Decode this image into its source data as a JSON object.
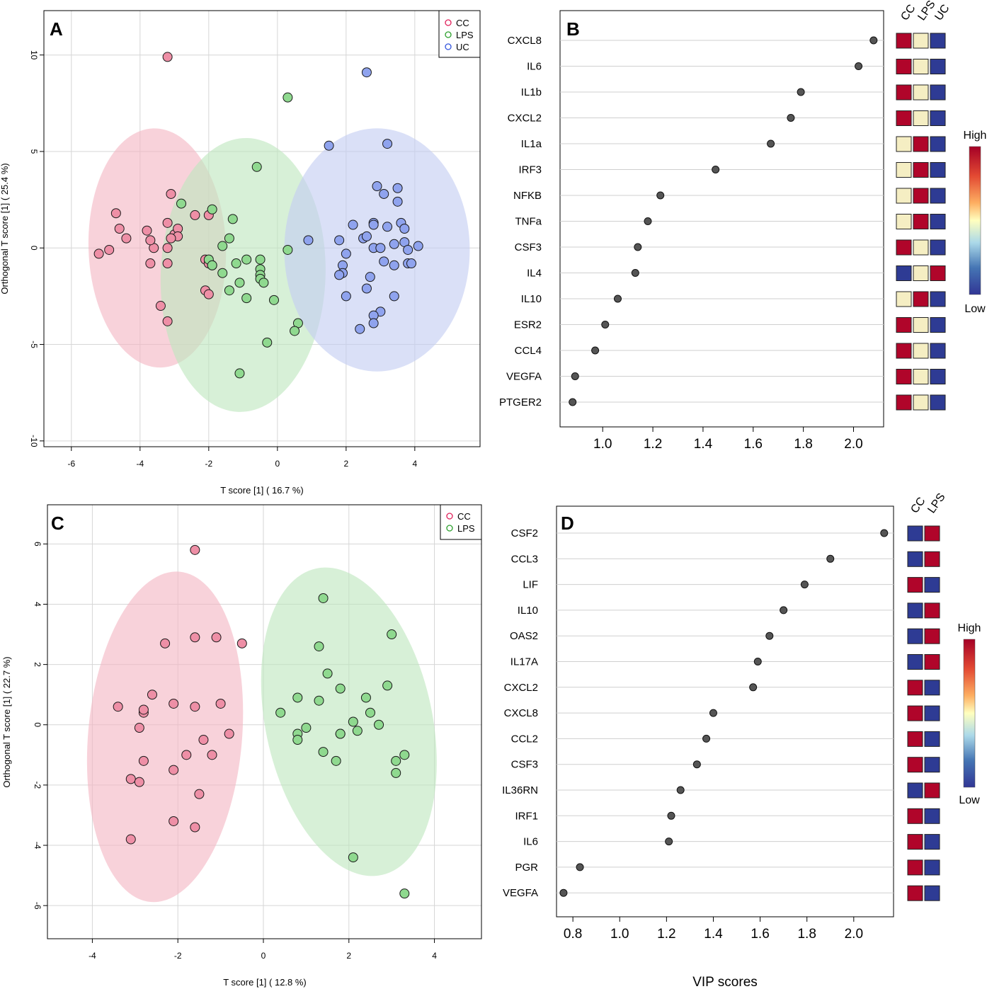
{
  "panelA": {
    "letter": "A",
    "xlabel": "T score [1] ( 16.7 %)",
    "ylabel": "Orthogonal T score [1] ( 25.4 %)",
    "xticks": [
      "-6",
      "-4",
      "-2",
      "0",
      "2",
      "4"
    ],
    "yticks": [
      "10",
      "5",
      "0",
      "-5",
      "-10"
    ],
    "legend": [
      "CC",
      "LPS",
      "UC"
    ]
  },
  "panelB": {
    "letter": "B",
    "xticks": [
      "1.0",
      "1.2",
      "1.4",
      "1.6",
      "1.8",
      "2.0"
    ],
    "group_labels": [
      "CC",
      "LPS",
      "UC"
    ],
    "colorbar_high": "High",
    "colorbar_low": "Low"
  },
  "panelC": {
    "letter": "C",
    "xlabel": "T score [1] ( 12.8 %)",
    "ylabel": "Orthogonal T score [1] ( 22.7 %)",
    "xticks": [
      "-4",
      "-2",
      "0",
      "2",
      "4"
    ],
    "yticks": [
      "6",
      "4",
      "2",
      "0",
      "-2",
      "-4",
      "-6"
    ],
    "legend": [
      "CC",
      "LPS"
    ]
  },
  "panelD": {
    "letter": "D",
    "xlabel": "VIP scores",
    "xticks": [
      "0.8",
      "1.0",
      "1.2",
      "1.4",
      "1.6",
      "1.8",
      "2.0"
    ],
    "group_labels": [
      "CC",
      "LPS"
    ],
    "colorbar_high": "High",
    "colorbar_low": "Low"
  },
  "colors": {
    "CC_fill": "#ee8fa6",
    "CC_edge": "#e0205a",
    "LPS_fill": "#8fd98f",
    "LPS_edge": "#2ca02c",
    "UC_fill": "#8fa3ee",
    "UC_edge": "#3355dd",
    "CC_ellipse": "#f4b6c4",
    "LPS_ellipse": "#bfe6bf",
    "UC_ellipse": "#c3cdf2",
    "heat_high": "#b0052a",
    "heat_mid": "#f5eec3",
    "heat_low": "#2e3b94",
    "dot": "#555555"
  },
  "chart_data": [
    {
      "panel": "A",
      "type": "scatter",
      "xlabel": "T score [1] ( 16.7 %)",
      "ylabel": "Orthogonal T score [1] ( 25.4 %)",
      "xlim": [
        -6.8,
        5.9
      ],
      "ylim": [
        -10.3,
        12.3
      ],
      "ellipses": [
        {
          "group": "CC",
          "cx": -3.5,
          "cy": 0.0,
          "rx": 2.0,
          "ry": 6.2,
          "angle": -2
        },
        {
          "group": "LPS",
          "cx": -1.0,
          "cy": -1.4,
          "rx": 2.4,
          "ry": 7.1,
          "angle": 2
        },
        {
          "group": "UC",
          "cx": 2.9,
          "cy": -0.1,
          "rx": 2.7,
          "ry": 6.3,
          "angle": 0
        }
      ],
      "series": [
        {
          "name": "CC",
          "points": [
            [
              -3.2,
              9.9
            ],
            [
              -4.7,
              1.8
            ],
            [
              -4.6,
              1.0
            ],
            [
              -4.4,
              0.5
            ],
            [
              -5.2,
              -0.3
            ],
            [
              -4.9,
              -0.1
            ],
            [
              -3.6,
              0.0
            ],
            [
              -3.8,
              0.9
            ],
            [
              -3.7,
              0.4
            ],
            [
              -3.1,
              2.8
            ],
            [
              -3.2,
              1.3
            ],
            [
              -3.0,
              0.7
            ],
            [
              -2.9,
              1.0
            ],
            [
              -2.9,
              0.6
            ],
            [
              -3.1,
              0.5
            ],
            [
              -3.2,
              0.0
            ],
            [
              -2.4,
              1.7
            ],
            [
              -2.0,
              1.7
            ],
            [
              -3.7,
              -0.8
            ],
            [
              -3.2,
              -0.8
            ],
            [
              -3.4,
              -3.0
            ],
            [
              -3.2,
              -3.8
            ],
            [
              -2.1,
              -2.2
            ],
            [
              -2.0,
              -2.4
            ],
            [
              -2.1,
              -0.6
            ],
            [
              -2.0,
              -0.8
            ],
            [
              -1.9,
              -0.9
            ]
          ]
        },
        {
          "name": "LPS",
          "points": [
            [
              0.3,
              7.8
            ],
            [
              -0.6,
              4.2
            ],
            [
              -2.8,
              2.3
            ],
            [
              -1.9,
              2.0
            ],
            [
              -1.3,
              1.5
            ],
            [
              -1.4,
              0.5
            ],
            [
              -1.6,
              0.1
            ],
            [
              -2.0,
              -0.6
            ],
            [
              -1.9,
              -0.9
            ],
            [
              -1.6,
              -1.3
            ],
            [
              -1.2,
              -0.8
            ],
            [
              -0.9,
              -0.6
            ],
            [
              -0.5,
              -0.6
            ],
            [
              -0.5,
              -1.1
            ],
            [
              -0.5,
              -1.4
            ],
            [
              -0.5,
              -1.6
            ],
            [
              -0.4,
              -1.8
            ],
            [
              -1.1,
              -1.8
            ],
            [
              -1.4,
              -2.2
            ],
            [
              -0.9,
              -2.6
            ],
            [
              -0.1,
              -2.7
            ],
            [
              0.3,
              -0.1
            ],
            [
              0.6,
              -3.9
            ],
            [
              0.5,
              -4.3
            ],
            [
              -0.3,
              -4.9
            ],
            [
              -1.1,
              -6.5
            ]
          ]
        },
        {
          "name": "UC",
          "points": [
            [
              2.6,
              9.1
            ],
            [
              1.5,
              5.3
            ],
            [
              3.2,
              5.4
            ],
            [
              2.9,
              3.2
            ],
            [
              3.1,
              2.8
            ],
            [
              3.5,
              3.1
            ],
            [
              3.5,
              2.4
            ],
            [
              2.2,
              1.2
            ],
            [
              2.8,
              1.3
            ],
            [
              2.8,
              1.2
            ],
            [
              3.2,
              1.1
            ],
            [
              3.6,
              1.3
            ],
            [
              3.7,
              1.0
            ],
            [
              0.9,
              0.4
            ],
            [
              1.8,
              0.4
            ],
            [
              2.5,
              0.5
            ],
            [
              2.6,
              0.6
            ],
            [
              2.8,
              0.0
            ],
            [
              3.0,
              0.0
            ],
            [
              3.4,
              0.2
            ],
            [
              3.7,
              0.3
            ],
            [
              3.8,
              -0.1
            ],
            [
              4.1,
              0.1
            ],
            [
              2.0,
              -0.3
            ],
            [
              3.1,
              -0.7
            ],
            [
              3.4,
              -0.9
            ],
            [
              3.8,
              -0.8
            ],
            [
              3.9,
              -0.8
            ],
            [
              1.9,
              -0.9
            ],
            [
              1.9,
              -1.3
            ],
            [
              1.8,
              -1.4
            ],
            [
              2.7,
              -1.5
            ],
            [
              2.6,
              -2.1
            ],
            [
              2.0,
              -2.5
            ],
            [
              3.4,
              -2.5
            ],
            [
              3.0,
              -3.3
            ],
            [
              2.8,
              -3.5
            ],
            [
              2.8,
              -3.9
            ],
            [
              2.4,
              -4.2
            ]
          ]
        }
      ]
    },
    {
      "panel": "B",
      "type": "dot",
      "xlabel": "",
      "xlim": [
        0.83,
        2.12
      ],
      "genes": [
        "CXCL8",
        "IL6",
        "IL1b",
        "CXCL2",
        "IL1a",
        "IRF3",
        "NFKB",
        "TNFa",
        "CSF3",
        "IL4",
        "IL10",
        "ESR2",
        "CCL4",
        "VEGFA",
        "PTGER2"
      ],
      "values": [
        2.08,
        2.02,
        1.79,
        1.75,
        1.67,
        1.45,
        1.23,
        1.18,
        1.14,
        1.13,
        1.06,
        1.01,
        0.97,
        0.89,
        0.88
      ],
      "groups": [
        "CC",
        "LPS",
        "UC"
      ],
      "heatmap": [
        [
          "H",
          "M",
          "L"
        ],
        [
          "H",
          "M",
          "L"
        ],
        [
          "H",
          "M",
          "L"
        ],
        [
          "H",
          "M",
          "L"
        ],
        [
          "M",
          "H",
          "L"
        ],
        [
          "M",
          "H",
          "L"
        ],
        [
          "M",
          "H",
          "L"
        ],
        [
          "M",
          "H",
          "L"
        ],
        [
          "H",
          "M",
          "L"
        ],
        [
          "L",
          "M",
          "H"
        ],
        [
          "M",
          "H",
          "L"
        ],
        [
          "H",
          "M",
          "L"
        ],
        [
          "H",
          "M",
          "L"
        ],
        [
          "H",
          "M",
          "L"
        ],
        [
          "H",
          "M",
          "L"
        ]
      ]
    },
    {
      "panel": "C",
      "type": "scatter",
      "xlabel": "T score [1] ( 12.8 %)",
      "ylabel": "Orthogonal T score [1] ( 22.7 %)",
      "xlim": [
        -5.05,
        5.1
      ],
      "ylim": [
        -7.1,
        7.3
      ],
      "ellipses": [
        {
          "group": "CC",
          "cx": -2.3,
          "cy": -0.4,
          "rx": 1.8,
          "ry": 5.5,
          "angle": 5
        },
        {
          "group": "LPS",
          "cx": 2.0,
          "cy": 0.1,
          "rx": 1.95,
          "ry": 5.2,
          "angle": -12
        }
      ],
      "series": [
        {
          "name": "CC",
          "points": [
            [
              -1.6,
              5.8
            ],
            [
              -2.3,
              2.7
            ],
            [
              -1.6,
              2.9
            ],
            [
              -1.1,
              2.9
            ],
            [
              -0.5,
              2.7
            ],
            [
              -2.6,
              1.0
            ],
            [
              -2.1,
              0.7
            ],
            [
              -1.6,
              0.6
            ],
            [
              -1.0,
              0.7
            ],
            [
              -3.4,
              0.6
            ],
            [
              -2.8,
              0.4
            ],
            [
              -2.8,
              0.5
            ],
            [
              -2.9,
              -0.1
            ],
            [
              -0.8,
              -0.3
            ],
            [
              -1.4,
              -0.5
            ],
            [
              -1.8,
              -1.0
            ],
            [
              -1.2,
              -1.0
            ],
            [
              -2.8,
              -1.2
            ],
            [
              -2.1,
              -1.5
            ],
            [
              -3.1,
              -1.8
            ],
            [
              -2.9,
              -1.9
            ],
            [
              -1.5,
              -2.3
            ],
            [
              -2.1,
              -3.2
            ],
            [
              -1.6,
              -3.4
            ],
            [
              -3.1,
              -3.8
            ]
          ]
        },
        {
          "name": "LPS",
          "points": [
            [
              1.4,
              4.2
            ],
            [
              3.0,
              3.0
            ],
            [
              1.3,
              2.6
            ],
            [
              1.5,
              1.7
            ],
            [
              1.8,
              1.2
            ],
            [
              2.9,
              1.3
            ],
            [
              0.4,
              0.4
            ],
            [
              0.8,
              0.9
            ],
            [
              1.3,
              0.8
            ],
            [
              2.4,
              0.9
            ],
            [
              2.5,
              0.4
            ],
            [
              2.1,
              0.1
            ],
            [
              2.7,
              0.0
            ],
            [
              1.0,
              -0.1
            ],
            [
              0.8,
              -0.3
            ],
            [
              0.8,
              -0.5
            ],
            [
              1.8,
              -0.3
            ],
            [
              1.8,
              -0.3
            ],
            [
              2.2,
              -0.2
            ],
            [
              1.4,
              -0.9
            ],
            [
              1.7,
              -1.2
            ],
            [
              3.1,
              -1.2
            ],
            [
              3.3,
              -1.0
            ],
            [
              3.1,
              -1.6
            ],
            [
              2.1,
              -4.4
            ],
            [
              3.3,
              -5.6
            ]
          ]
        }
      ]
    },
    {
      "panel": "D",
      "type": "dot",
      "xlabel": "VIP scores",
      "xlim": [
        0.73,
        2.17
      ],
      "genes": [
        "CSF2",
        "CCL3",
        "LIF",
        "IL10",
        "OAS2",
        "IL17A",
        "CXCL2",
        "CXCL8",
        "CCL2",
        "CSF3",
        "IL36RN",
        "IRF1",
        "IL6",
        "PGR",
        "VEGFA"
      ],
      "values": [
        2.13,
        1.9,
        1.79,
        1.7,
        1.64,
        1.59,
        1.57,
        1.4,
        1.37,
        1.33,
        1.26,
        1.22,
        1.21,
        0.83,
        0.76
      ],
      "groups": [
        "CC",
        "LPS"
      ],
      "heatmap": [
        [
          "L",
          "H"
        ],
        [
          "L",
          "H"
        ],
        [
          "H",
          "L"
        ],
        [
          "L",
          "H"
        ],
        [
          "L",
          "H"
        ],
        [
          "L",
          "H"
        ],
        [
          "H",
          "L"
        ],
        [
          "H",
          "L"
        ],
        [
          "H",
          "L"
        ],
        [
          "H",
          "L"
        ],
        [
          "L",
          "H"
        ],
        [
          "H",
          "L"
        ],
        [
          "H",
          "L"
        ],
        [
          "H",
          "L"
        ],
        [
          "H",
          "L"
        ]
      ]
    }
  ]
}
